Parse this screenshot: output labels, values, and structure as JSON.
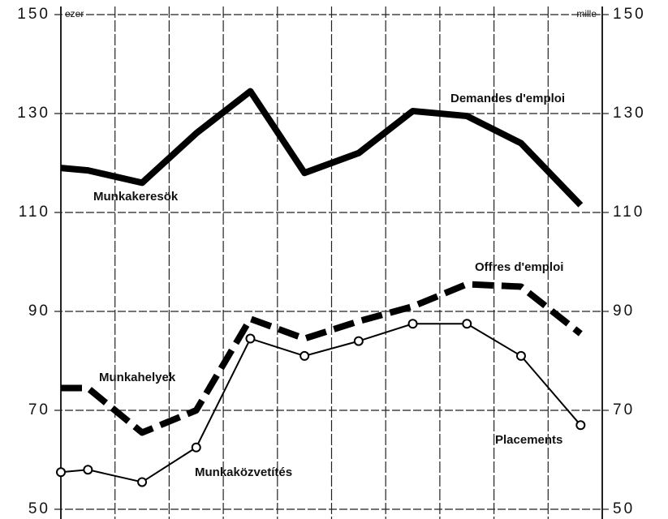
{
  "chart_data": {
    "type": "line",
    "axis_unit_left": "ezer",
    "axis_unit_right": "mille",
    "x": [
      0,
      0.5,
      1.5,
      2.5,
      3.5,
      4.5,
      5.5,
      6.5,
      7.5,
      8.5,
      9.6
    ],
    "xlim": [
      0,
      10
    ],
    "xticks": [
      0,
      1,
      2,
      3,
      4,
      5,
      6,
      7,
      8,
      9,
      10
    ],
    "ylim": [
      50,
      150
    ],
    "yticks": [
      50,
      70,
      90,
      110,
      130,
      150
    ],
    "y2lim": [
      50,
      150
    ],
    "y2ticks": [
      50,
      70,
      90,
      110,
      130,
      150
    ],
    "grid": true,
    "series": [
      {
        "name": "Demandes d'emploi",
        "color": "#000000",
        "style": "solid",
        "width": 8,
        "marker": false,
        "values": [
          119,
          118.5,
          116,
          126,
          134.5,
          118,
          122,
          130.5,
          129.5,
          124,
          111.5
        ]
      },
      {
        "name": "Offres d'emploi",
        "color": "#000000",
        "style": "dashed",
        "width": 8,
        "marker": false,
        "values": [
          74.5,
          74.5,
          65.5,
          70,
          88.5,
          84.5,
          88,
          91,
          95.5,
          95,
          85.5
        ]
      },
      {
        "name": "Placements",
        "color": "#000000",
        "style": "solid",
        "width": 2,
        "marker": true,
        "values": [
          57.5,
          58,
          55.5,
          62.5,
          84.5,
          81,
          84,
          87.5,
          87.5,
          81,
          67
        ]
      }
    ],
    "annotations": [
      "Munkakeresök",
      "Munkahelyek",
      "Munkaközvetítés"
    ]
  }
}
